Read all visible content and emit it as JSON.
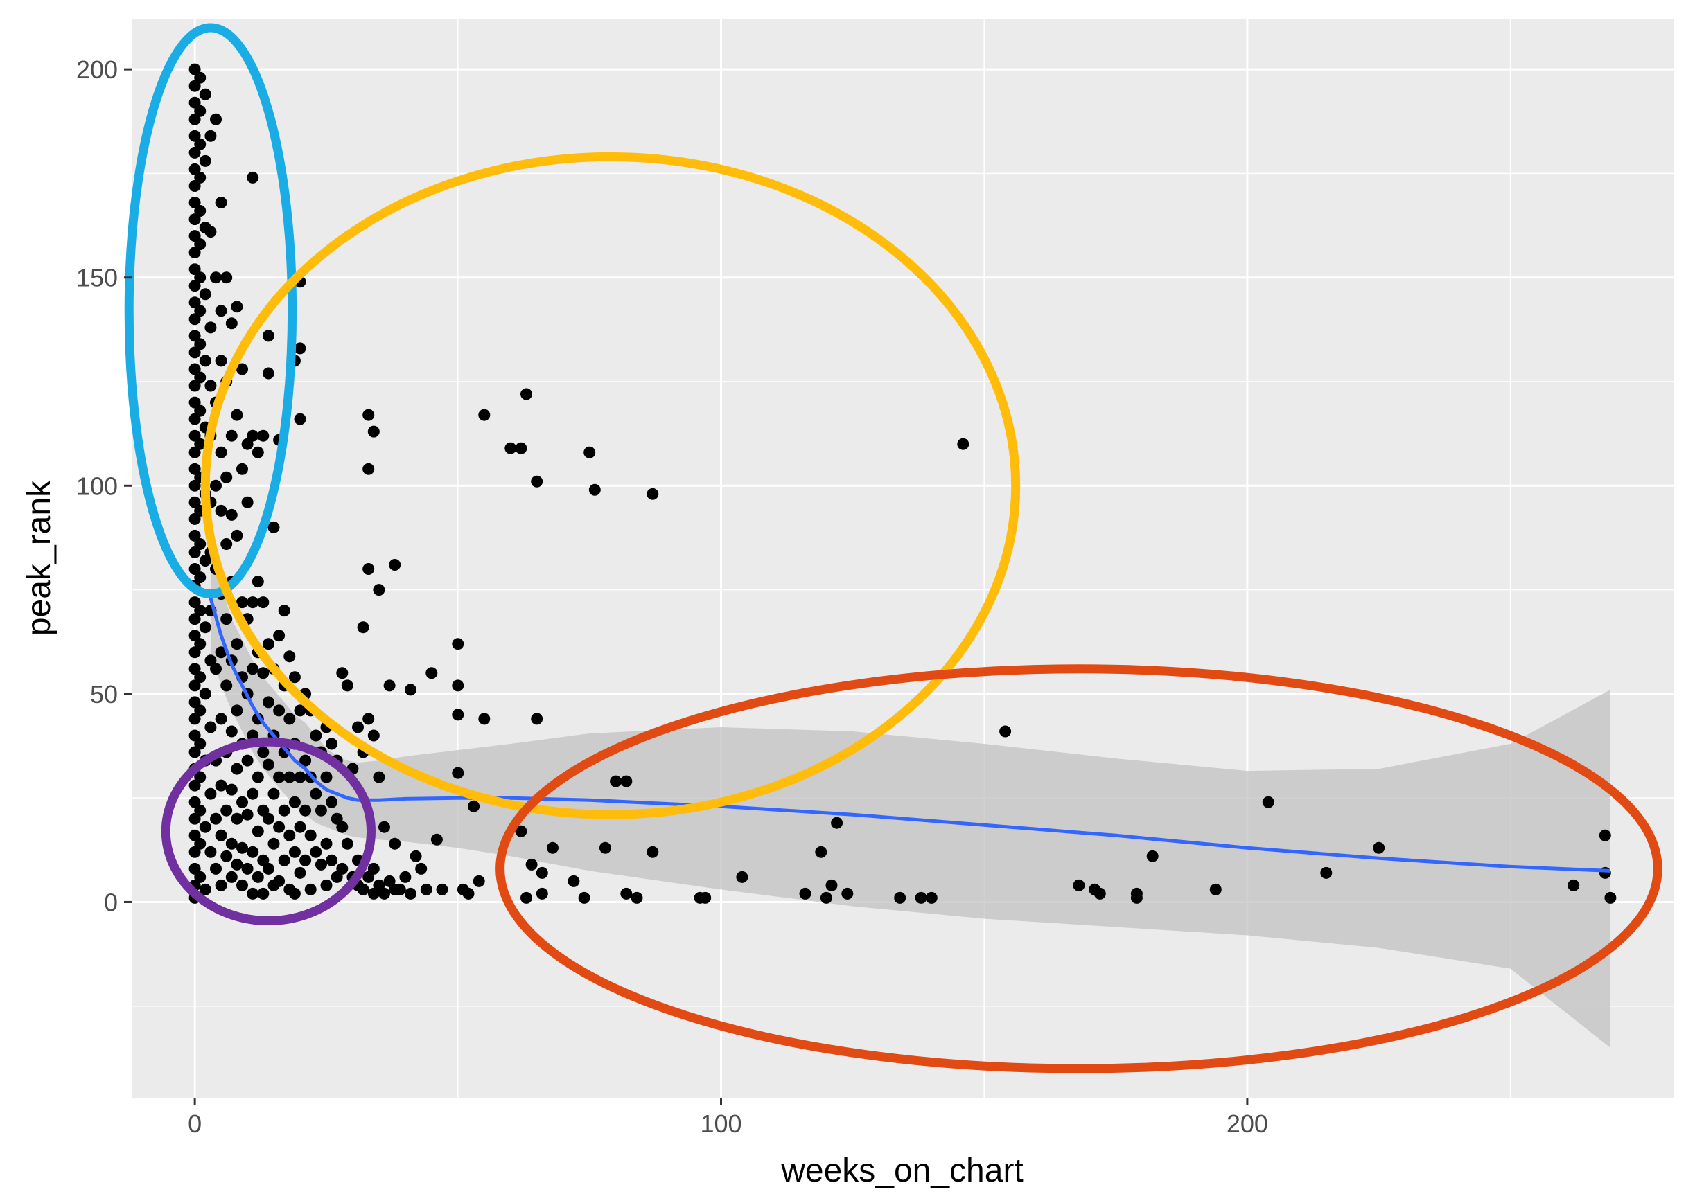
{
  "chart_data": {
    "type": "scatter",
    "title": "",
    "xlabel": "weeks_on_chart",
    "ylabel": "peak_rank",
    "xlim": [
      -12,
      281
    ],
    "ylim": [
      -47,
      212
    ],
    "x_ticks": [
      0,
      100,
      200
    ],
    "x_minor_ticks": [
      50,
      150,
      250
    ],
    "y_ticks": [
      0,
      50,
      100,
      150,
      200
    ],
    "y_minor_ticks": [
      -25,
      25,
      75,
      125,
      175
    ],
    "x_tick_labels": [
      "0",
      "100",
      "200"
    ],
    "y_tick_labels": [
      "0",
      "50",
      "100",
      "150",
      "200"
    ],
    "grid": true,
    "panel_background": "#ebebeb",
    "point_color": "#000000",
    "smooth_color": "#3366ff",
    "ribbon_color": "#bfbfbf",
    "points": [
      [
        0,
        200
      ],
      [
        0,
        196
      ],
      [
        0,
        192
      ],
      [
        0,
        188
      ],
      [
        0,
        184
      ],
      [
        0,
        180
      ],
      [
        0,
        176
      ],
      [
        0,
        172
      ],
      [
        0,
        168
      ],
      [
        0,
        164
      ],
      [
        0,
        160
      ],
      [
        0,
        156
      ],
      [
        0,
        152
      ],
      [
        0,
        148
      ],
      [
        0,
        144
      ],
      [
        0,
        140
      ],
      [
        0,
        136
      ],
      [
        0,
        132
      ],
      [
        0,
        128
      ],
      [
        0,
        124
      ],
      [
        0,
        120
      ],
      [
        0,
        116
      ],
      [
        0,
        112
      ],
      [
        0,
        108
      ],
      [
        0,
        104
      ],
      [
        0,
        100
      ],
      [
        0,
        96
      ],
      [
        0,
        92
      ],
      [
        0,
        88
      ],
      [
        0,
        84
      ],
      [
        0,
        80
      ],
      [
        0,
        76
      ],
      [
        0,
        72
      ],
      [
        0,
        68
      ],
      [
        0,
        64
      ],
      [
        0,
        60
      ],
      [
        0,
        56
      ],
      [
        0,
        52
      ],
      [
        0,
        48
      ],
      [
        0,
        44
      ],
      [
        0,
        40
      ],
      [
        0,
        36
      ],
      [
        0,
        32
      ],
      [
        0,
        28
      ],
      [
        0,
        24
      ],
      [
        0,
        20
      ],
      [
        0,
        16
      ],
      [
        0,
        12
      ],
      [
        0,
        8
      ],
      [
        0,
        4
      ],
      [
        0,
        1
      ],
      [
        1,
        198
      ],
      [
        1,
        190
      ],
      [
        1,
        182
      ],
      [
        1,
        174
      ],
      [
        1,
        166
      ],
      [
        1,
        158
      ],
      [
        1,
        150
      ],
      [
        1,
        142
      ],
      [
        1,
        134
      ],
      [
        1,
        126
      ],
      [
        1,
        118
      ],
      [
        1,
        110
      ],
      [
        1,
        102
      ],
      [
        1,
        94
      ],
      [
        1,
        86
      ],
      [
        1,
        78
      ],
      [
        1,
        70
      ],
      [
        1,
        62
      ],
      [
        1,
        54
      ],
      [
        1,
        46
      ],
      [
        1,
        38
      ],
      [
        1,
        30
      ],
      [
        1,
        22
      ],
      [
        1,
        14
      ],
      [
        1,
        6
      ],
      [
        2,
        194
      ],
      [
        2,
        178
      ],
      [
        2,
        162
      ],
      [
        2,
        146
      ],
      [
        2,
        130
      ],
      [
        2,
        114
      ],
      [
        2,
        98
      ],
      [
        2,
        82
      ],
      [
        2,
        66
      ],
      [
        2,
        50
      ],
      [
        2,
        34
      ],
      [
        2,
        18
      ],
      [
        2,
        3
      ],
      [
        3,
        184
      ],
      [
        3,
        161
      ],
      [
        3,
        138
      ],
      [
        3,
        124
      ],
      [
        3,
        112
      ],
      [
        3,
        96
      ],
      [
        3,
        84
      ],
      [
        3,
        70
      ],
      [
        3,
        58
      ],
      [
        3,
        42
      ],
      [
        3,
        26
      ],
      [
        3,
        12
      ],
      [
        4,
        188
      ],
      [
        4,
        150
      ],
      [
        4,
        120
      ],
      [
        4,
        100
      ],
      [
        4,
        80
      ],
      [
        4,
        56
      ],
      [
        4,
        34
      ],
      [
        4,
        20
      ],
      [
        4,
        8
      ],
      [
        5,
        168
      ],
      [
        5,
        142
      ],
      [
        5,
        130
      ],
      [
        5,
        108
      ],
      [
        5,
        94
      ],
      [
        5,
        74
      ],
      [
        5,
        60
      ],
      [
        5,
        44
      ],
      [
        5,
        28
      ],
      [
        5,
        16
      ],
      [
        5,
        4
      ],
      [
        6,
        150
      ],
      [
        6,
        125
      ],
      [
        6,
        102
      ],
      [
        6,
        86
      ],
      [
        6,
        68
      ],
      [
        6,
        52
      ],
      [
        6,
        36
      ],
      [
        6,
        22
      ],
      [
        6,
        11
      ],
      [
        7,
        139
      ],
      [
        7,
        112
      ],
      [
        7,
        93
      ],
      [
        7,
        77
      ],
      [
        7,
        58
      ],
      [
        7,
        41
      ],
      [
        7,
        27
      ],
      [
        7,
        14
      ],
      [
        7,
        6
      ],
      [
        8,
        143
      ],
      [
        8,
        117
      ],
      [
        8,
        88
      ],
      [
        8,
        62
      ],
      [
        8,
        46
      ],
      [
        8,
        32
      ],
      [
        8,
        20
      ],
      [
        8,
        9
      ],
      [
        9,
        128
      ],
      [
        9,
        104
      ],
      [
        9,
        72
      ],
      [
        9,
        54
      ],
      [
        9,
        38
      ],
      [
        9,
        24
      ],
      [
        9,
        13
      ],
      [
        9,
        4
      ],
      [
        10,
        110
      ],
      [
        10,
        96
      ],
      [
        10,
        68
      ],
      [
        10,
        50
      ],
      [
        10,
        34
      ],
      [
        10,
        21
      ],
      [
        10,
        8
      ],
      [
        11,
        174
      ],
      [
        11,
        112
      ],
      [
        11,
        72
      ],
      [
        11,
        56
      ],
      [
        11,
        40
      ],
      [
        11,
        26
      ],
      [
        11,
        12
      ],
      [
        11,
        2
      ],
      [
        12,
        108
      ],
      [
        12,
        77
      ],
      [
        12,
        60
      ],
      [
        12,
        44
      ],
      [
        12,
        30
      ],
      [
        12,
        17
      ],
      [
        12,
        6
      ],
      [
        13,
        112
      ],
      [
        13,
        72
      ],
      [
        13,
        55
      ],
      [
        13,
        36
      ],
      [
        13,
        22
      ],
      [
        13,
        10
      ],
      [
        13,
        2
      ],
      [
        14,
        136
      ],
      [
        14,
        127
      ],
      [
        14,
        62
      ],
      [
        14,
        48
      ],
      [
        14,
        33
      ],
      [
        14,
        20
      ],
      [
        14,
        8
      ],
      [
        15,
        90
      ],
      [
        15,
        56
      ],
      [
        15,
        40
      ],
      [
        15,
        26
      ],
      [
        15,
        14
      ],
      [
        15,
        4
      ],
      [
        16,
        111
      ],
      [
        16,
        64
      ],
      [
        16,
        46
      ],
      [
        16,
        30
      ],
      [
        16,
        18
      ],
      [
        16,
        5
      ],
      [
        17,
        70
      ],
      [
        17,
        52
      ],
      [
        17,
        36
      ],
      [
        17,
        22
      ],
      [
        17,
        10
      ],
      [
        18,
        59
      ],
      [
        18,
        44
      ],
      [
        18,
        30
      ],
      [
        18,
        16
      ],
      [
        18,
        3
      ],
      [
        19,
        130
      ],
      [
        19,
        54
      ],
      [
        19,
        38
      ],
      [
        19,
        24
      ],
      [
        19,
        12
      ],
      [
        19,
        2
      ],
      [
        20,
        149
      ],
      [
        20,
        133
      ],
      [
        20,
        116
      ],
      [
        20,
        46
      ],
      [
        20,
        30
      ],
      [
        20,
        18
      ],
      [
        20,
        7
      ],
      [
        21,
        50
      ],
      [
        21,
        34
      ],
      [
        21,
        22
      ],
      [
        21,
        10
      ],
      [
        22,
        46
      ],
      [
        22,
        30
      ],
      [
        22,
        16
      ],
      [
        22,
        3
      ],
      [
        23,
        40
      ],
      [
        23,
        26
      ],
      [
        23,
        12
      ],
      [
        24,
        36
      ],
      [
        24,
        22
      ],
      [
        24,
        9
      ],
      [
        25,
        42
      ],
      [
        25,
        30
      ],
      [
        25,
        14
      ],
      [
        25,
        4
      ],
      [
        26,
        38
      ],
      [
        26,
        24
      ],
      [
        26,
        10
      ],
      [
        27,
        34
      ],
      [
        27,
        20
      ],
      [
        27,
        6
      ],
      [
        28,
        55
      ],
      [
        28,
        18
      ],
      [
        28,
        8
      ],
      [
        29,
        52
      ],
      [
        29,
        14
      ],
      [
        30,
        32
      ],
      [
        30,
        6
      ],
      [
        31,
        42
      ],
      [
        31,
        10
      ],
      [
        31,
        4
      ],
      [
        32,
        66
      ],
      [
        32,
        36
      ],
      [
        32,
        3
      ],
      [
        33,
        117
      ],
      [
        33,
        104
      ],
      [
        33,
        80
      ],
      [
        33,
        44
      ],
      [
        33,
        6
      ],
      [
        34,
        113
      ],
      [
        34,
        40
      ],
      [
        34,
        8
      ],
      [
        34,
        2
      ],
      [
        35,
        75
      ],
      [
        35,
        30
      ],
      [
        35,
        4
      ],
      [
        36,
        18
      ],
      [
        36,
        2
      ],
      [
        37,
        52
      ],
      [
        37,
        5
      ],
      [
        38,
        81
      ],
      [
        38,
        14
      ],
      [
        38,
        3
      ],
      [
        39,
        3
      ],
      [
        40,
        6
      ],
      [
        41,
        2
      ],
      [
        41,
        51
      ],
      [
        42,
        11
      ],
      [
        43,
        8
      ],
      [
        44,
        3
      ],
      [
        45,
        55
      ],
      [
        46,
        15
      ],
      [
        47,
        3
      ],
      [
        50,
        62
      ],
      [
        50,
        52
      ],
      [
        50,
        45
      ],
      [
        50,
        31
      ],
      [
        51,
        3
      ],
      [
        52,
        2
      ],
      [
        53,
        23
      ],
      [
        54,
        5
      ],
      [
        55,
        117
      ],
      [
        55,
        44
      ],
      [
        60,
        109
      ],
      [
        62,
        109
      ],
      [
        62,
        17
      ],
      [
        63,
        122
      ],
      [
        63,
        1
      ],
      [
        64,
        9
      ],
      [
        65,
        101
      ],
      [
        65,
        44
      ],
      [
        66,
        7
      ],
      [
        66,
        2
      ],
      [
        68,
        13
      ],
      [
        72,
        5
      ],
      [
        74,
        1
      ],
      [
        75,
        108
      ],
      [
        76,
        99
      ],
      [
        78,
        13
      ],
      [
        80,
        29
      ],
      [
        82,
        29
      ],
      [
        82,
        2
      ],
      [
        84,
        1
      ],
      [
        87,
        98
      ],
      [
        87,
        12
      ],
      [
        96,
        1
      ],
      [
        97,
        1
      ],
      [
        104,
        6
      ],
      [
        116,
        2
      ],
      [
        119,
        12
      ],
      [
        120,
        1
      ],
      [
        121,
        4
      ],
      [
        122,
        19
      ],
      [
        124,
        2
      ],
      [
        134,
        1
      ],
      [
        138,
        1
      ],
      [
        140,
        1
      ],
      [
        146,
        110
      ],
      [
        154,
        41
      ],
      [
        168,
        4
      ],
      [
        171,
        3
      ],
      [
        172,
        2
      ],
      [
        179,
        2
      ],
      [
        179,
        1
      ],
      [
        182,
        11
      ],
      [
        194,
        3
      ],
      [
        204,
        24
      ],
      [
        215,
        7
      ],
      [
        225,
        13
      ],
      [
        262,
        4
      ],
      [
        268,
        16
      ],
      [
        268,
        7
      ],
      [
        269,
        1
      ]
    ],
    "smooth": {
      "x": [
        3,
        5,
        7,
        9,
        11,
        13,
        15,
        17,
        19,
        21,
        23,
        25,
        27,
        29,
        31,
        35,
        40,
        50,
        60,
        75,
        100,
        125,
        150,
        175,
        200,
        225,
        250,
        269
      ],
      "y": [
        73,
        64,
        57,
        52,
        47,
        43,
        40,
        37,
        34,
        32,
        29,
        27,
        26,
        25,
        24.5,
        24.5,
        24.8,
        25,
        25,
        24.5,
        23,
        21,
        18.5,
        16,
        13,
        10.5,
        8.5,
        7.5
      ],
      "lower": [
        60,
        52,
        46,
        41,
        36,
        32,
        29,
        26,
        23,
        21,
        19,
        18,
        17,
        16,
        15.5,
        15,
        14.5,
        13,
        11,
        7.5,
        3,
        -1,
        -4,
        -6,
        -8,
        -11,
        -16,
        -35
      ],
      "upper": [
        86,
        76,
        68,
        63,
        58,
        54,
        51,
        48,
        45,
        43,
        40,
        37,
        35,
        34,
        33.5,
        34,
        35,
        36.5,
        38,
        40.5,
        42,
        41,
        38,
        34.5,
        31.5,
        32,
        38,
        51
      ]
    },
    "annotations": [
      {
        "shape": "ellipse",
        "color": "#1aade5",
        "cx": 3,
        "cy": 142,
        "rx": 15.5,
        "ry": 68
      },
      {
        "shape": "ellipse",
        "color": "#ffbc0a",
        "cx": 79,
        "cy": 100,
        "rx": 77,
        "ry": 79
      },
      {
        "shape": "ellipse",
        "color": "#e14a12",
        "cx": 168,
        "cy": 8,
        "rx": 110,
        "ry": 48
      },
      {
        "shape": "ellipse",
        "color": "#7030a0",
        "cx": 14,
        "cy": 17,
        "rx": 19.5,
        "ry": 21.5
      }
    ]
  }
}
